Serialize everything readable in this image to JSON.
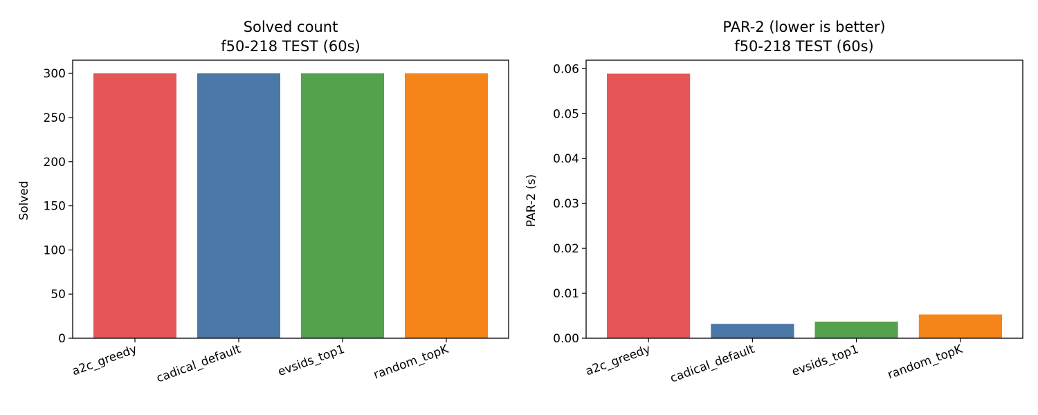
{
  "chart_data": [
    {
      "type": "bar",
      "title_line1": "Solved count",
      "title_line2": "f50-218 TEST (60s)",
      "xlabel": "",
      "ylabel": "Solved",
      "categories": [
        "a2c_greedy",
        "cadical_default",
        "evsids_top1",
        "random_topK"
      ],
      "values": [
        300,
        300,
        300,
        300
      ],
      "colors": [
        "#e45756",
        "#4c78a8",
        "#54a24b",
        "#f58518"
      ],
      "ylim": [
        0,
        315
      ],
      "yticks": [
        "0",
        "50",
        "100",
        "150",
        "200",
        "250",
        "300"
      ],
      "grid": false
    },
    {
      "type": "bar",
      "title_line1": "PAR-2 (lower is better)",
      "title_line2": "f50-218 TEST (60s)",
      "xlabel": "",
      "ylabel": "PAR-2 (s)",
      "categories": [
        "a2c_greedy",
        "cadical_default",
        "evsids_top1",
        "random_topK"
      ],
      "values": [
        0.0589,
        0.0032,
        0.0037,
        0.0053
      ],
      "colors": [
        "#e45756",
        "#4c78a8",
        "#54a24b",
        "#f58518"
      ],
      "ylim": [
        0,
        0.0619
      ],
      "yticks": [
        "0.00",
        "0.01",
        "0.02",
        "0.03",
        "0.04",
        "0.05",
        "0.06"
      ],
      "grid": false
    }
  ]
}
